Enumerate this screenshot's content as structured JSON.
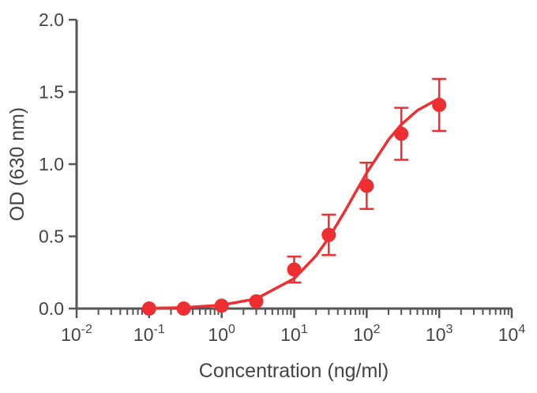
{
  "chart_data": {
    "type": "scatter",
    "xlabel": "Concentration (ng/ml)",
    "ylabel": "OD (630 nm)",
    "xscale": "log",
    "xlim": [
      0.01,
      10000
    ],
    "ylim": [
      0,
      2.0
    ],
    "x_ticks": [
      {
        "value": 0.01,
        "base": "10",
        "exp": "-2"
      },
      {
        "value": 0.1,
        "base": "10",
        "exp": "-1"
      },
      {
        "value": 1,
        "base": "10",
        "exp": "0"
      },
      {
        "value": 10,
        "base": "10",
        "exp": "1"
      },
      {
        "value": 100,
        "base": "10",
        "exp": "2"
      },
      {
        "value": 1000,
        "base": "10",
        "exp": "3"
      },
      {
        "value": 10000,
        "base": "10",
        "exp": "4"
      }
    ],
    "y_ticks": [
      {
        "value": 0,
        "label": "0.0"
      },
      {
        "value": 0.5,
        "label": "0.5"
      },
      {
        "value": 1.0,
        "label": "1.0"
      },
      {
        "value": 1.5,
        "label": "1.5"
      },
      {
        "value": 2.0,
        "label": "2.0"
      }
    ],
    "grid": false,
    "color": "#ee2e31",
    "axis_color": "#555555",
    "points": [
      {
        "x": 0.1,
        "y": 0.0,
        "err": 0
      },
      {
        "x": 0.3,
        "y": 0.0,
        "err": 0
      },
      {
        "x": 1,
        "y": 0.02,
        "err": 0
      },
      {
        "x": 3,
        "y": 0.05,
        "err": 0
      },
      {
        "x": 10,
        "y": 0.27,
        "err": 0.09
      },
      {
        "x": 30,
        "y": 0.51,
        "err": 0.14
      },
      {
        "x": 100,
        "y": 0.85,
        "err": 0.16
      },
      {
        "x": 300,
        "y": 1.21,
        "err": 0.18
      },
      {
        "x": 1000,
        "y": 1.41,
        "err": 0.18
      }
    ],
    "curve": [
      [
        0.1,
        0.002
      ],
      [
        0.3,
        0.007
      ],
      [
        1,
        0.024
      ],
      [
        3,
        0.068
      ],
      [
        10,
        0.207
      ],
      [
        20,
        0.365
      ],
      [
        30,
        0.489
      ],
      [
        50,
        0.674
      ],
      [
        70,
        0.804
      ],
      [
        100,
        0.939
      ],
      [
        200,
        1.17
      ],
      [
        300,
        1.274
      ],
      [
        500,
        1.372
      ],
      [
        1000,
        1.455
      ]
    ]
  }
}
